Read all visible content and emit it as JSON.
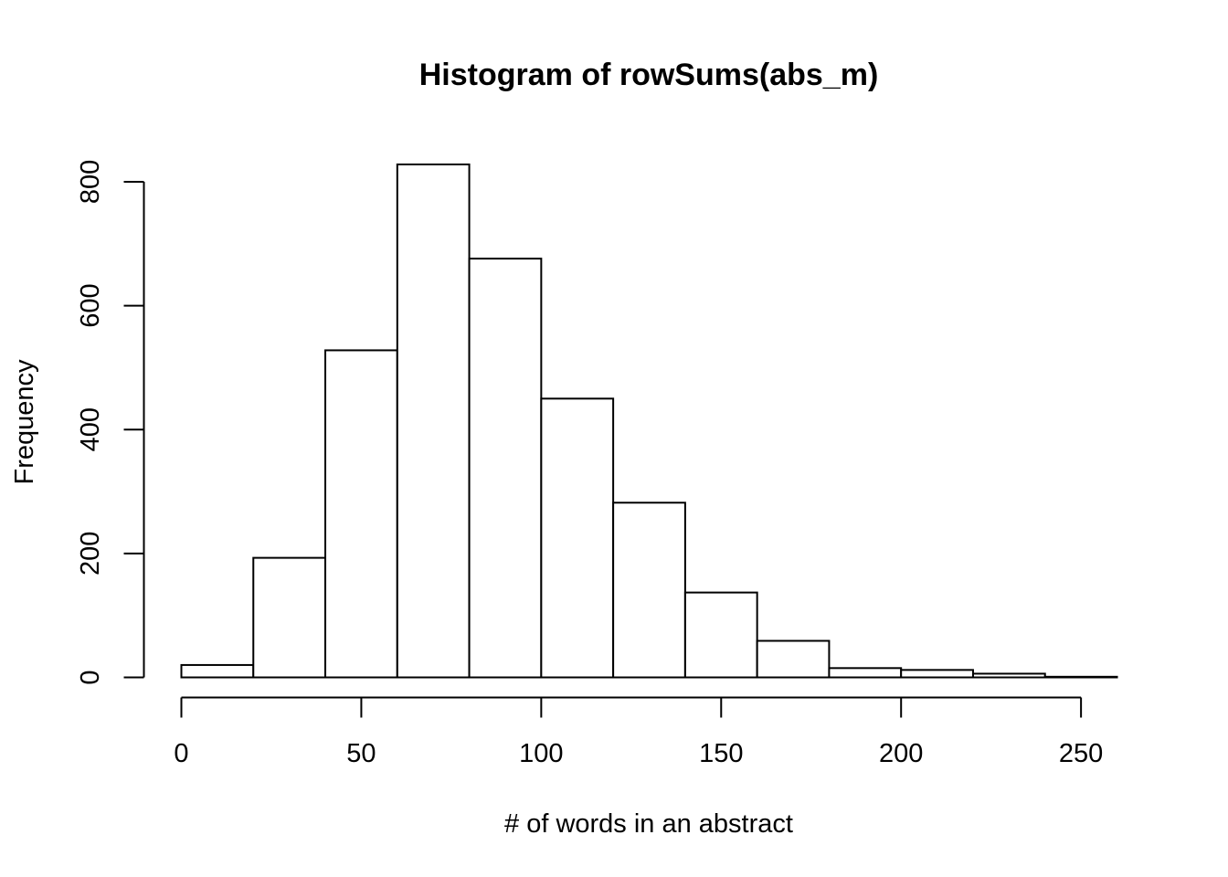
{
  "chart_data": {
    "type": "bar",
    "title": "Histogram of rowSums(abs_m)",
    "xlabel": "# of words in an abstract",
    "ylabel": "Frequency",
    "bins": [
      {
        "start": 0,
        "end": 20,
        "count": 20
      },
      {
        "start": 20,
        "end": 40,
        "count": 193
      },
      {
        "start": 40,
        "end": 60,
        "count": 528
      },
      {
        "start": 60,
        "end": 80,
        "count": 828
      },
      {
        "start": 80,
        "end": 100,
        "count": 676
      },
      {
        "start": 100,
        "end": 120,
        "count": 450
      },
      {
        "start": 120,
        "end": 140,
        "count": 282
      },
      {
        "start": 140,
        "end": 160,
        "count": 137
      },
      {
        "start": 160,
        "end": 180,
        "count": 59
      },
      {
        "start": 180,
        "end": 200,
        "count": 15
      },
      {
        "start": 200,
        "end": 220,
        "count": 12
      },
      {
        "start": 220,
        "end": 240,
        "count": 6
      },
      {
        "start": 240,
        "end": 260,
        "count": 1
      }
    ],
    "xlim": [
      0,
      260
    ],
    "ylim": [
      0,
      828
    ],
    "xticks": [
      0,
      50,
      100,
      150,
      200,
      250
    ],
    "xtick_labels": [
      "0",
      "50",
      "100",
      "150",
      "200",
      "250"
    ],
    "yticks": [
      0,
      200,
      400,
      600,
      800
    ],
    "ytick_labels": [
      "0",
      "200",
      "400",
      "600",
      "800"
    ],
    "grid": false,
    "legend": "none",
    "colors": {
      "bar_fill": "#ffffff",
      "bar_stroke": "#000000"
    }
  }
}
